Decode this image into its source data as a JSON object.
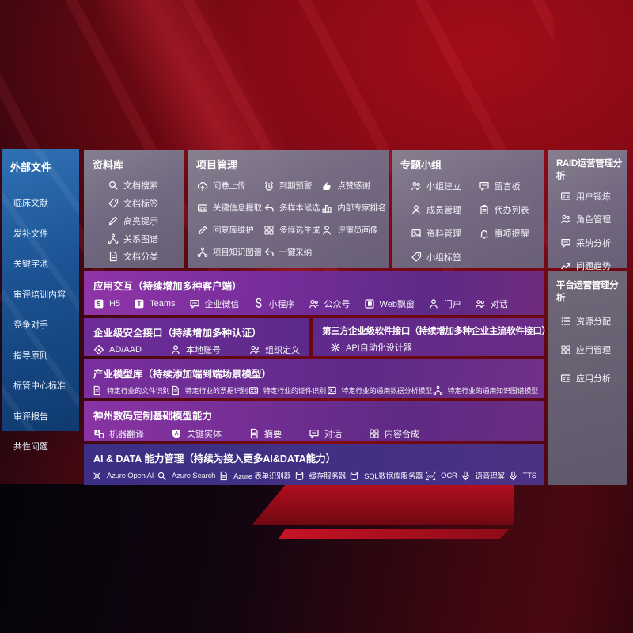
{
  "colors": {
    "sidebar_blue": "#1c5293",
    "panel_gray": "#74718a",
    "band_purple": "#7c2f99",
    "band_indigo": "#3f3083",
    "background_red": "#8a0b16",
    "text": "#ffffff"
  },
  "sidebar": {
    "title": "外部文件",
    "items": [
      {
        "label": "临床文献"
      },
      {
        "label": "发补文件"
      },
      {
        "label": "关键字池"
      },
      {
        "label": "审评培训内容"
      },
      {
        "label": "竞争对手"
      },
      {
        "label": "指导原则"
      },
      {
        "label": "标管中心标准"
      },
      {
        "label": "审评报告"
      },
      {
        "label": "共性问题"
      }
    ]
  },
  "panels": {
    "library": {
      "title": "资料库",
      "items": [
        {
          "label": "文档搜索",
          "icon": "search"
        },
        {
          "label": "文档标签",
          "icon": "tag"
        },
        {
          "label": "高亮提示",
          "icon": "pen"
        },
        {
          "label": "关系图谱",
          "icon": "graph"
        },
        {
          "label": "文档分类",
          "icon": "doc"
        }
      ]
    },
    "project": {
      "title": "项目管理",
      "items": [
        {
          "label": "问卷上传",
          "icon": "cloud"
        },
        {
          "label": "到期预警",
          "icon": "alarm"
        },
        {
          "label": "点赞感谢",
          "icon": "thumb"
        },
        {
          "label": "关键信息提取",
          "icon": "card"
        },
        {
          "label": "多样本候选",
          "icon": "arrowl"
        },
        {
          "label": "内部专家排名",
          "icon": "podium"
        },
        {
          "label": "回复库维护",
          "icon": "pen"
        },
        {
          "label": "多候选生成",
          "icon": "grid"
        },
        {
          "label": "评审员画像",
          "icon": "person"
        },
        {
          "label": "项目知识图谱",
          "icon": "graph"
        },
        {
          "label": "一键采纳",
          "icon": "arrowl"
        }
      ]
    },
    "topic": {
      "title": "专题小组",
      "items": [
        {
          "label": "小组建立",
          "icon": "people"
        },
        {
          "label": "留言板",
          "icon": "chat"
        },
        {
          "label": "成员管理",
          "icon": "person"
        },
        {
          "label": "代办列表",
          "icon": "clipboard"
        },
        {
          "label": "资料管理",
          "icon": "photo"
        },
        {
          "label": "事项提醒",
          "icon": "bell"
        },
        {
          "label": "小组标签",
          "icon": "tag"
        }
      ]
    },
    "raid": {
      "title": "RAID运营管理分析",
      "items": [
        {
          "label": "用户锻炼",
          "icon": "card"
        },
        {
          "label": "角色管理",
          "icon": "people"
        },
        {
          "label": "采纳分析",
          "icon": "chat"
        },
        {
          "label": "问题趋势",
          "icon": "trend"
        }
      ]
    },
    "platform": {
      "title": "平台运营管理分析",
      "items": [
        {
          "label": "资源分配",
          "icon": "list"
        },
        {
          "label": "应用管理",
          "icon": "grid"
        },
        {
          "label": "应用分析",
          "icon": "card"
        }
      ]
    }
  },
  "bands": {
    "interaction": {
      "title": "应用交互（持续增加多种客户端）",
      "items": [
        {
          "label": "H5",
          "icon": "five"
        },
        {
          "label": "Teams",
          "icon": "tee"
        },
        {
          "label": "企业微信",
          "icon": "chat"
        },
        {
          "label": "小程序",
          "icon": "scurve"
        },
        {
          "label": "公众号",
          "icon": "people"
        },
        {
          "label": "Web飘窗",
          "icon": "window"
        },
        {
          "label": "门户",
          "icon": "person"
        },
        {
          "label": "对话",
          "icon": "people"
        }
      ]
    },
    "security": {
      "title": "企业级安全接口（持续增加多种认证）",
      "items": [
        {
          "label": "AD/AAD",
          "icon": "diamond"
        },
        {
          "label": "本地账号",
          "icon": "person"
        },
        {
          "label": "组织定义",
          "icon": "people"
        }
      ]
    },
    "thirdparty": {
      "title": "第三方企业级软件接口（持续增加多种企业主流软件接口）",
      "items": [
        {
          "label": "API自动化设计器",
          "icon": "gear"
        }
      ]
    },
    "industry": {
      "title": "产业模型库（持续添加端到端场景模型）",
      "items": [
        {
          "label": "特定行业的文件识别",
          "icon": "doc"
        },
        {
          "label": "特定行业的票据识别",
          "icon": "doc"
        },
        {
          "label": "特定行业的证件识别",
          "icon": "card"
        },
        {
          "label": "特定行业的通用数据分析模型",
          "icon": "photo"
        },
        {
          "label": "特定行业的通用知识图谱模型",
          "icon": "graph"
        }
      ]
    },
    "base_models": {
      "title": "神州数码定制基础模型能力",
      "items": [
        {
          "label": "机器翻译",
          "icon": "trans"
        },
        {
          "label": "关键实体",
          "icon": "atext"
        },
        {
          "label": "摘要",
          "icon": "doc"
        },
        {
          "label": "对话",
          "icon": "chat"
        },
        {
          "label": "内容合成",
          "icon": "grid"
        }
      ]
    },
    "ai_data": {
      "title": "AI & DATA 能力管理（持续为接入更多AI&DATA能力）",
      "items": [
        {
          "label": "Azure Open AI",
          "icon": "gear"
        },
        {
          "label": "Azure Search",
          "icon": "search"
        },
        {
          "label": "Azure 表单识别器",
          "icon": "doc"
        },
        {
          "label": "缓存服务器",
          "icon": "db"
        },
        {
          "label": "SQL数据库服务器",
          "icon": "db"
        },
        {
          "label": "OCR",
          "icon": "ocrx"
        },
        {
          "label": "语音理解",
          "icon": "mic"
        },
        {
          "label": "TTS",
          "icon": "mic"
        }
      ]
    }
  }
}
